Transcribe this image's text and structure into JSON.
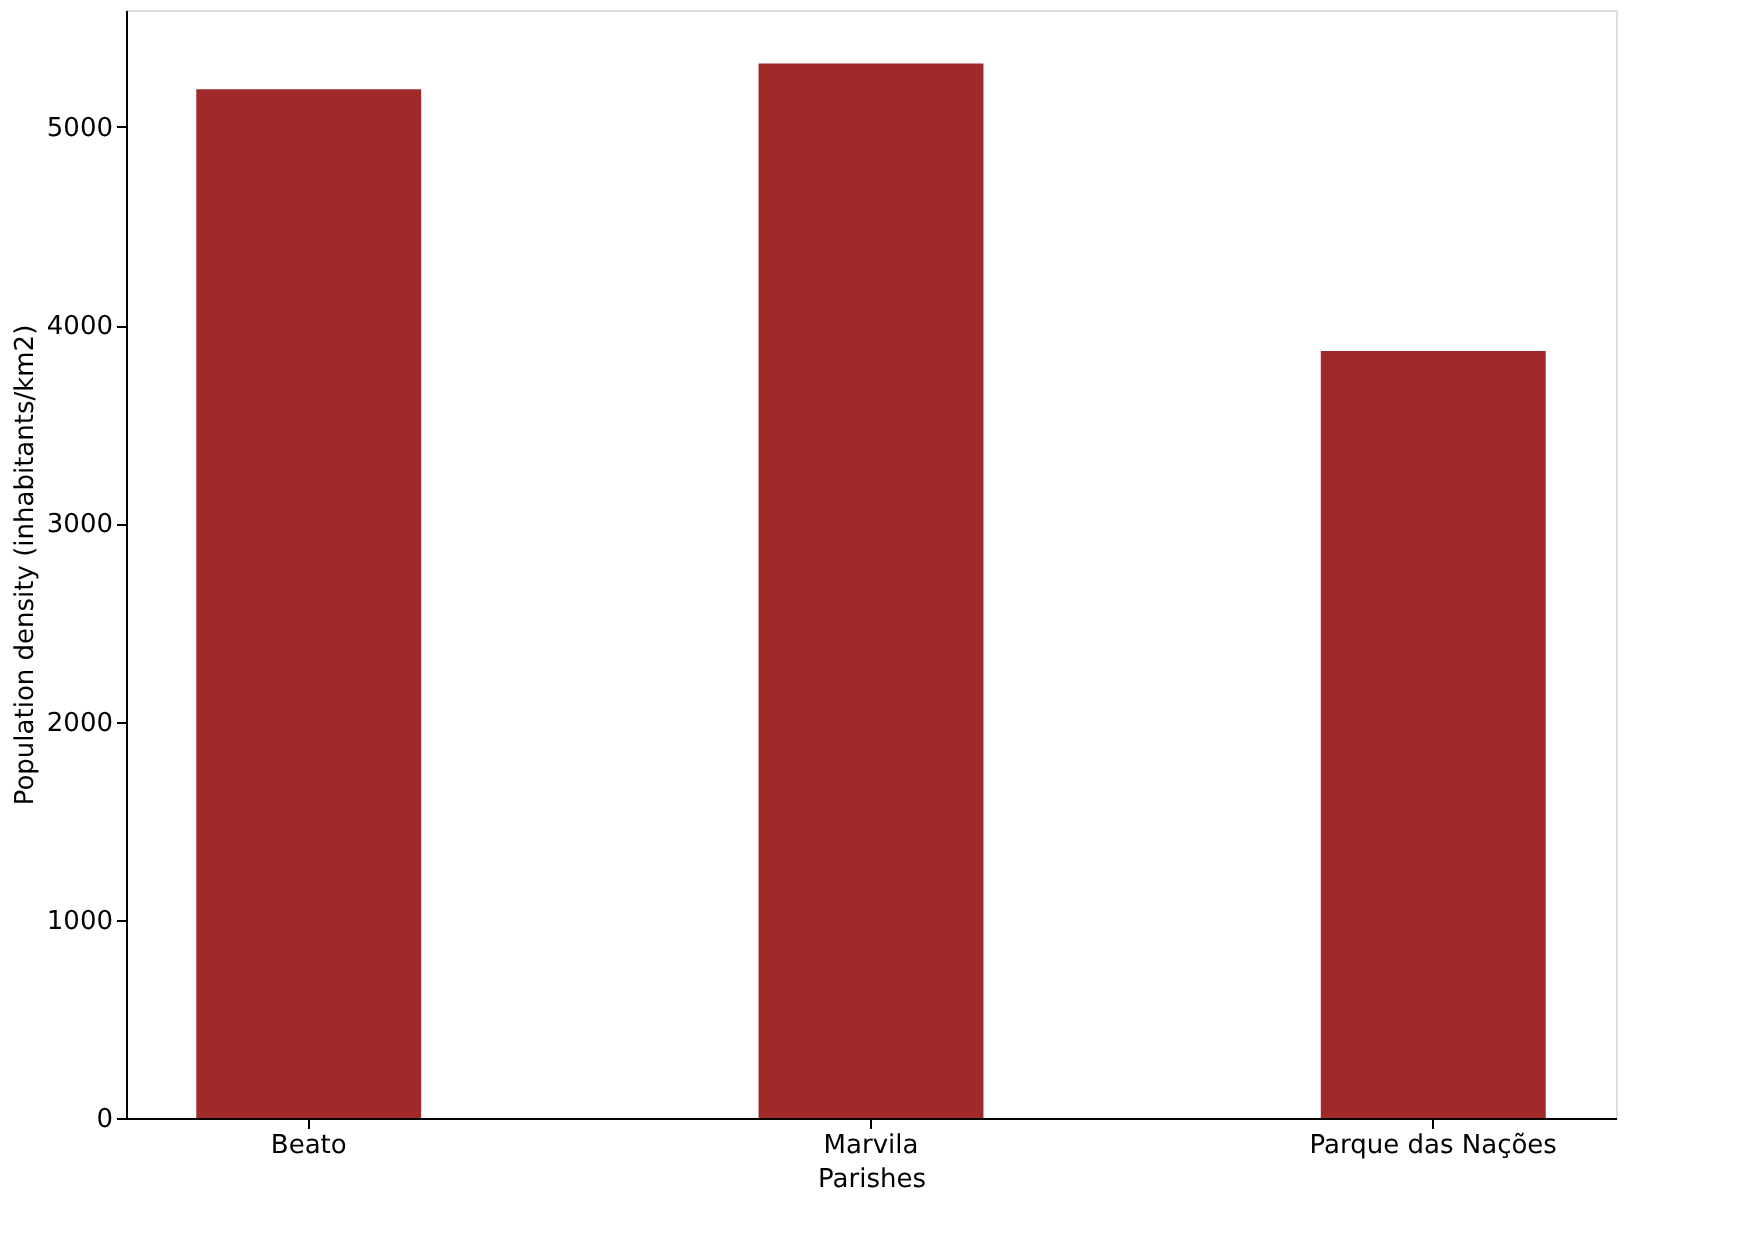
{
  "chart_data": {
    "type": "bar",
    "xlabel": "Parishes",
    "ylabel": "Population density (inhabitants/km2)",
    "categories": [
      "Beato",
      "Marvila",
      "Parque das Nações"
    ],
    "values": [
      5190,
      5320,
      3870
    ],
    "color": "#a0292a",
    "ylim": [
      0,
      5590
    ],
    "yticks": [
      0,
      1000,
      2000,
      3000,
      4000,
      5000
    ],
    "grid": false
  }
}
